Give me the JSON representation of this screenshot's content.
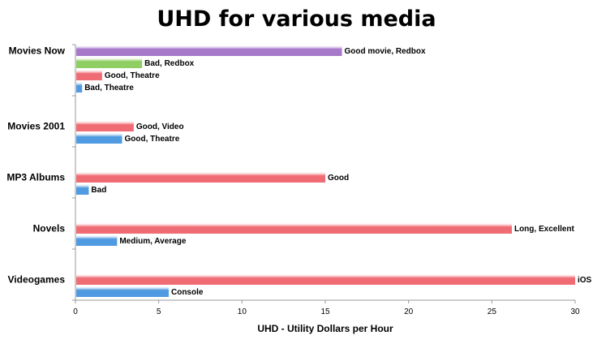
{
  "chart_data": {
    "type": "bar",
    "orientation": "horizontal",
    "title": "UHD for various media",
    "xlabel": "UHD - Utility Dollars per Hour",
    "ylabel": "",
    "xlim": [
      0,
      30
    ],
    "xticks": [
      "0",
      "5",
      "10",
      "15",
      "20",
      "25",
      "30"
    ],
    "grid": false,
    "legend": "none",
    "categories": [
      {
        "name": "Movies Now",
        "bars": [
          {
            "label": "Good movie, Redbox",
            "value": 16.0,
            "color": "#a678c9"
          },
          {
            "label": "Bad, Redbox",
            "value": 4.0,
            "color": "#8fce63"
          },
          {
            "label": "Good, Theatre",
            "value": 1.6,
            "color": "#f06c74"
          },
          {
            "label": "Bad, Theatre",
            "value": 0.4,
            "color": "#4f9ae0"
          }
        ]
      },
      {
        "name": "Movies 2001",
        "bars": [
          {
            "label": "Good, Video",
            "value": 3.5,
            "color": "#f06c74"
          },
          {
            "label": "Good, Theatre",
            "value": 2.8,
            "color": "#4f9ae0"
          }
        ]
      },
      {
        "name": "MP3 Albums",
        "bars": [
          {
            "label": "Good",
            "value": 15.0,
            "color": "#f06c74"
          },
          {
            "label": "Bad",
            "value": 0.8,
            "color": "#4f9ae0"
          }
        ]
      },
      {
        "name": "Novels",
        "bars": [
          {
            "label": "Long, Excellent",
            "value": 26.2,
            "color": "#f06c74"
          },
          {
            "label": "Medium, Average",
            "value": 2.5,
            "color": "#4f9ae0"
          }
        ]
      },
      {
        "name": "Videogames",
        "bars": [
          {
            "label": "iOS",
            "value": 30.0,
            "color": "#f06c74"
          },
          {
            "label": "Console",
            "value": 5.6,
            "color": "#4f9ae0"
          }
        ]
      }
    ]
  }
}
